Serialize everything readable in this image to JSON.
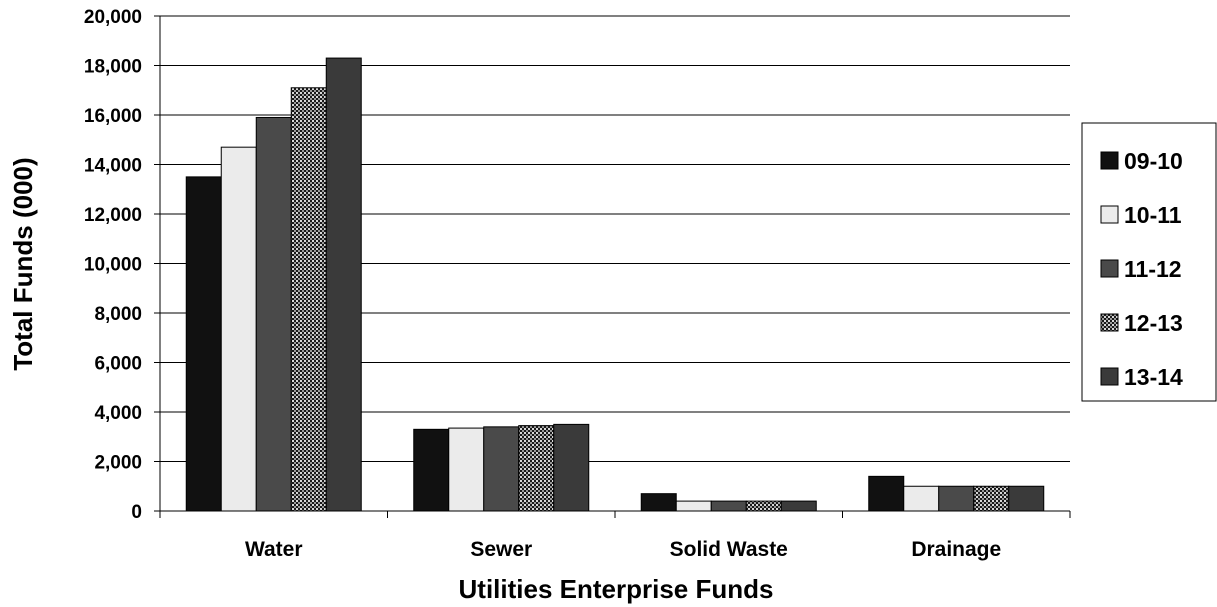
{
  "chart_data": {
    "type": "bar",
    "title": "",
    "xlabel": "Utilities Enterprise Funds",
    "ylabel": "Total Funds (000)",
    "categories": [
      "Water",
      "Sewer",
      "Solid Waste",
      "Drainage"
    ],
    "ylim": [
      0,
      20000
    ],
    "yticks": [
      "0",
      "2,000",
      "4,000",
      "6,000",
      "8,000",
      "10,000",
      "12,000",
      "14,000",
      "16,000",
      "18,000",
      "20,000"
    ],
    "grid": true,
    "legend_position": "right",
    "series": [
      {
        "name": "09-10",
        "color": "#111111",
        "values": [
          13500,
          3300,
          700,
          1400
        ]
      },
      {
        "name": "10-11",
        "color": "#ebebeb",
        "values": [
          14700,
          3350,
          400,
          1000
        ]
      },
      {
        "name": "11-12",
        "color": "#4a4a4a",
        "values": [
          15900,
          3400,
          400,
          1000
        ]
      },
      {
        "name": "12-13",
        "color": "#7a7a7a",
        "pattern": "dotted",
        "values": [
          17100,
          3450,
          400,
          1000
        ]
      },
      {
        "name": "13-14",
        "color": "#3a3a3a",
        "values": [
          18300,
          3500,
          400,
          1000
        ]
      }
    ]
  }
}
